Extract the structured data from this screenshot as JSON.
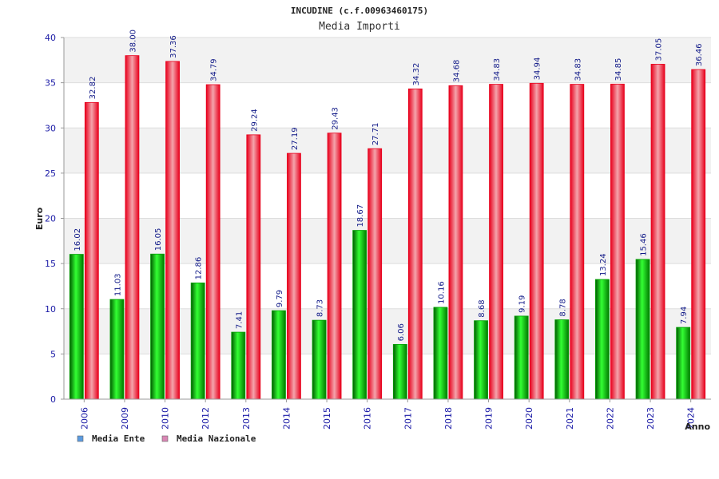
{
  "colors": {
    "ente": "#00a000",
    "nazionale": "#e8001c",
    "legend_ente": "#5b9be0",
    "legend_nazionale": "#d986b4",
    "band": "#f2f2f2",
    "tick_text": "#1a1aa6"
  },
  "chart_data": {
    "type": "bar",
    "title": "INCUDINE (c.f.00963460175)",
    "subtitle": "Media Importi",
    "xlabel": "Anno",
    "ylabel": "Euro",
    "ylim": [
      0,
      40
    ],
    "yticks": [
      "0",
      "5",
      "10",
      "15",
      "20",
      "25",
      "30",
      "35",
      "40"
    ],
    "categories": [
      "2006",
      "2009",
      "2010",
      "2012",
      "2013",
      "2014",
      "2015",
      "2016",
      "2017",
      "2018",
      "2019",
      "2020",
      "2021",
      "2022",
      "2023",
      "2024"
    ],
    "series": [
      {
        "name": "Media Ente",
        "values": [
          16.02,
          11.03,
          16.05,
          12.86,
          7.41,
          9.79,
          8.73,
          18.67,
          6.06,
          10.16,
          8.68,
          9.19,
          8.78,
          13.24,
          15.46,
          7.94
        ],
        "labels": [
          "16.02",
          "11.03",
          "16.05",
          "12.86",
          "7.41",
          "9.79",
          "8.73",
          "18.67",
          "6.06",
          "10.16",
          "8.68",
          "9.19",
          "8.78",
          "13.24",
          "15.46",
          "7.94"
        ]
      },
      {
        "name": "Media Nazionale",
        "values": [
          32.82,
          38.0,
          37.36,
          34.79,
          29.24,
          27.19,
          29.43,
          27.71,
          34.32,
          34.68,
          34.83,
          34.94,
          34.83,
          34.85,
          37.05,
          36.46
        ],
        "labels": [
          "32.82",
          "38.00",
          "37.36",
          "34.79",
          "29.24",
          "27.19",
          "29.43",
          "27.71",
          "34.32",
          "34.68",
          "34.83",
          "34.94",
          "34.83",
          "34.85",
          "37.05",
          "36.46"
        ]
      }
    ],
    "grid": true,
    "legend": "bottom-left"
  }
}
